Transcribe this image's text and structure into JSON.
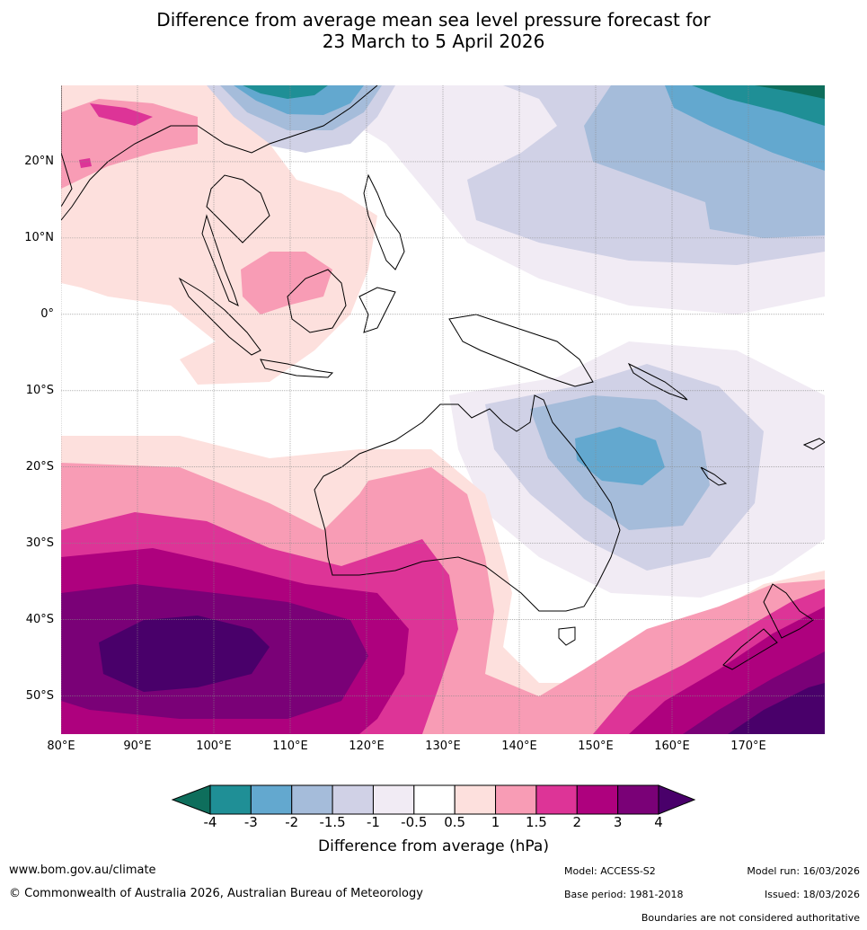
{
  "title": {
    "line1": "Difference from average mean sea level pressure forecast for",
    "line2": "23 March to 5 April 2026"
  },
  "map": {
    "lat_labels": [
      "20°N",
      "10°N",
      "0°",
      "10°S",
      "20°S",
      "30°S",
      "40°S",
      "50°S"
    ],
    "lon_labels": [
      "80°E",
      "90°E",
      "100°E",
      "110°E",
      "120°E",
      "130°E",
      "140°E",
      "150°E",
      "160°E",
      "170°E"
    ],
    "lon_range": [
      80,
      180
    ],
    "lat_range": [
      -55,
      30
    ]
  },
  "colorbar": {
    "label": "Difference from average (hPa)",
    "ticks": [
      "-4",
      "-3",
      "-2",
      "-1.5",
      "-1",
      "-0.5",
      "0.5",
      "1",
      "1.5",
      "2",
      "3",
      "4"
    ],
    "colors": [
      "#0e6e5c",
      "#1f8f96",
      "#63a8cf",
      "#a5bcda",
      "#d0d1e6",
      "#f1ebf4",
      "#ffffff",
      "#fde0dd",
      "#f89cb5",
      "#dd3497",
      "#ae017e",
      "#7a0177",
      "#49006a"
    ]
  },
  "footer": {
    "website": "www.bom.gov.au/climate",
    "copyright": "© Commonwealth of Australia 2026, Australian Bureau of Meteorology",
    "model": "Model: ACCESS-S2",
    "base_period": "Base period: 1981-2018",
    "model_run": "Model run: 16/03/2026",
    "issued": "Issued: 18/03/2026",
    "disclaimer": "Boundaries are not considered authoritative"
  }
}
